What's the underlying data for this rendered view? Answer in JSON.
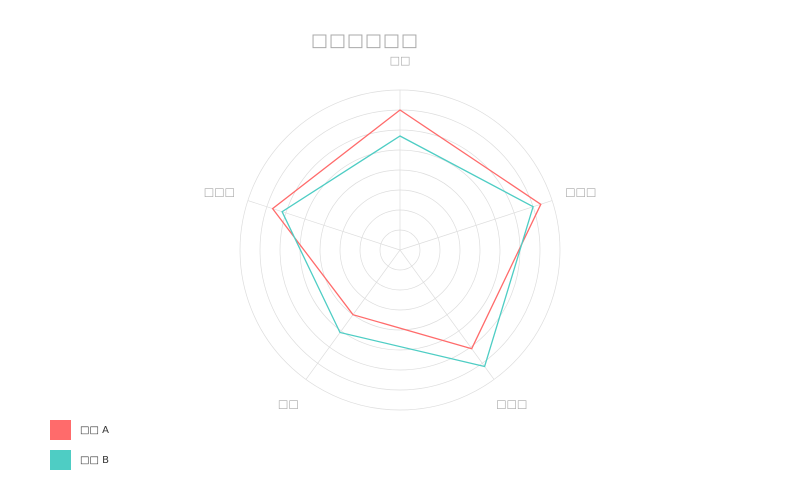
{
  "chart_data": {
    "type": "radar",
    "title": "□□□□□□",
    "axes": [
      "□□",
      "□□□",
      "□□□",
      "□□",
      "□□□"
    ],
    "max": 8,
    "rings": 8,
    "series": [
      {
        "name": "□□ A",
        "color": "#ff6b6b",
        "values": [
          7,
          7.4,
          6.1,
          4.0,
          6.7
        ]
      },
      {
        "name": "□□ B",
        "color": "#4ecdc4",
        "values": [
          5.7,
          7.0,
          7.2,
          5.1,
          6.2
        ]
      }
    ]
  }
}
